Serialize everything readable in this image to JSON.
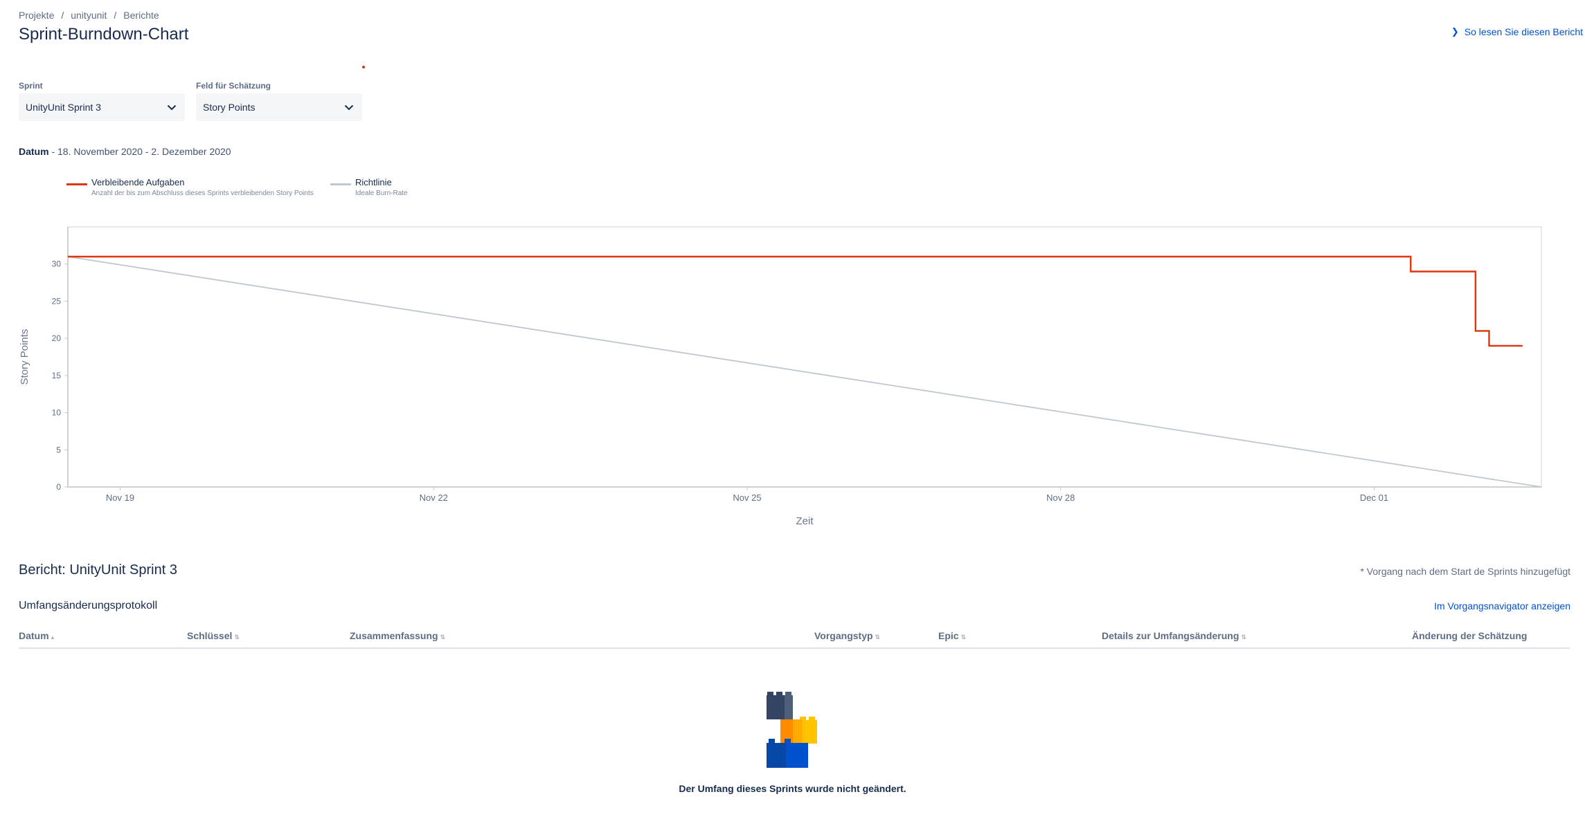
{
  "breadcrumb": [
    {
      "label": "Projekte"
    },
    {
      "label": "unityunit"
    },
    {
      "label": "Berichte"
    }
  ],
  "breadcrumb_separator": "/",
  "page_title": "Sprint-Burndown-Chart",
  "help_link": {
    "label": "So lesen Sie diesen Bericht",
    "icon": "chevron-right-icon"
  },
  "filters": {
    "sprint": {
      "label": "Sprint",
      "value": "UnityUnit Sprint 3",
      "icon": "chevron-down-icon"
    },
    "estimation": {
      "label": "Feld für Schätzung",
      "value": "Story Points",
      "icon": "chevron-down-icon"
    }
  },
  "date_range": {
    "label": "Datum",
    "value": "- 18. November 2020 - 2. Dezember 2020"
  },
  "legend": [
    {
      "title": "Verbleibende Aufgaben",
      "subtitle": "Anzahl der bis zum Abschluss dieses Sprints verbleibenden Story Points",
      "color": "#de350b"
    },
    {
      "title": "Richtlinie",
      "subtitle": "Ideale Burn-Rate",
      "color": "#c1c7d0"
    }
  ],
  "chart_data": {
    "type": "line",
    "xlabel": "Zeit",
    "ylabel": "Story Points",
    "x_tick_labels": [
      "Nov 19",
      "Nov 22",
      "Nov 25",
      "Nov 28",
      "Dec 01"
    ],
    "x_ticks_day_index": [
      0.5,
      3.5,
      6.5,
      9.5,
      12.5
    ],
    "xlim_day_index": [
      0,
      14.1
    ],
    "ylim": [
      0,
      35
    ],
    "y_ticks": [
      0,
      5,
      10,
      15,
      20,
      25,
      30
    ],
    "grid": false,
    "series": [
      {
        "name": "Verbleibende Aufgaben",
        "color": "#de350b",
        "step": true,
        "points": [
          [
            0,
            31
          ],
          [
            12.85,
            31
          ],
          [
            12.85,
            29
          ],
          [
            13.47,
            29
          ],
          [
            13.47,
            21
          ],
          [
            13.6,
            21
          ],
          [
            13.6,
            19
          ],
          [
            13.92,
            19
          ]
        ]
      },
      {
        "name": "Richtlinie",
        "color": "#c1c7d0",
        "step": false,
        "points": [
          [
            0,
            31
          ],
          [
            14.1,
            0
          ]
        ]
      }
    ]
  },
  "report": {
    "title": "Bericht: UnityUnit Sprint 3",
    "footnote": "* Vorgang nach dem Start de Sprints hinzugefügt",
    "scope_log_title": "Umfangsänderungsprotokoll",
    "navigator_link": "Im Vorgangsnavigator anzeigen",
    "columns": [
      {
        "label": "Datum",
        "sort": "▴"
      },
      {
        "label": "Schlüssel",
        "sort": "⇅"
      },
      {
        "label": "Zusammenfassung",
        "sort": "⇅"
      },
      {
        "label": "Vorgangstyp",
        "sort": "⇅"
      },
      {
        "label": "Epic",
        "sort": "⇅"
      },
      {
        "label": "Details zur Umfangsänderung",
        "sort": "⇅"
      },
      {
        "label": "Änderung der Schätzung",
        "sort": ""
      }
    ],
    "empty_message": "Der Umfang dieses Sprints wurde nicht geändert.",
    "empty_icon": "building-blocks-icon"
  },
  "colors": {
    "text": "#172b4d",
    "subtle_text": "#5e6c84",
    "link": "#0052cc",
    "select_bg": "#f4f5f7",
    "remaining": "#de350b",
    "guideline": "#c1c7d0"
  }
}
